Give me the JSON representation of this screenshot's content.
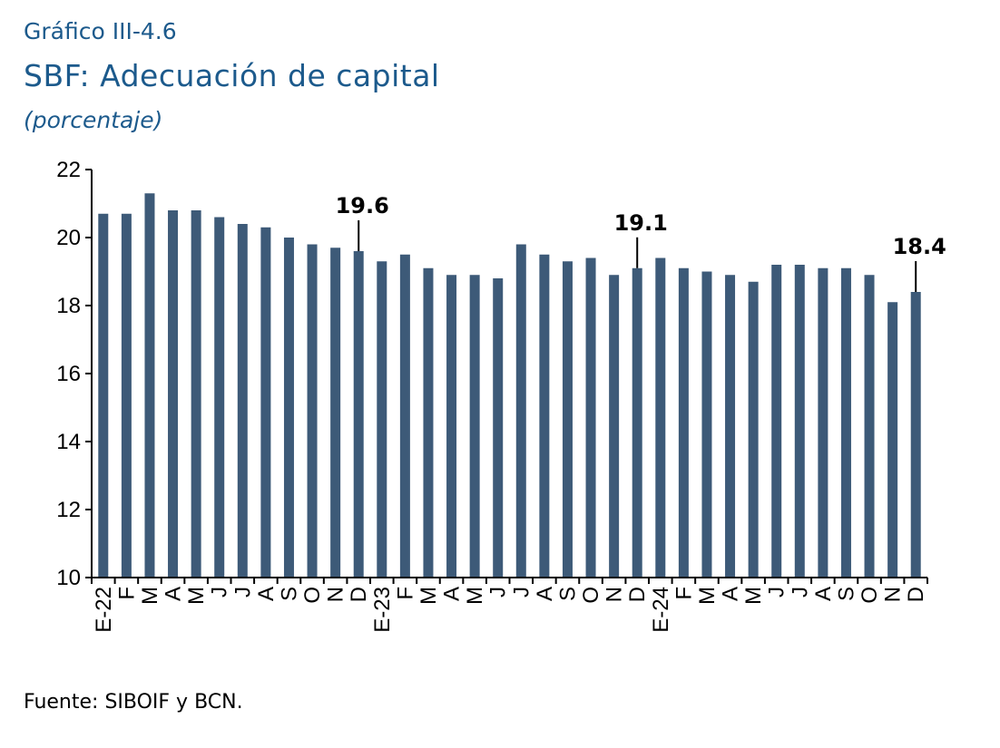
{
  "header": {
    "figure_number": "Gráfico III-4.6",
    "title": "SBF: Adecuación de capital",
    "units": "(porcentaje)"
  },
  "footer": {
    "source": "Fuente: SIBOIF y BCN."
  },
  "colors": {
    "bar": "#3d5a78",
    "text_title": "#1c5a8c",
    "axis": "#000000"
  },
  "chart_data": {
    "type": "bar",
    "title": "SBF: Adecuación de capital",
    "xlabel": "",
    "ylabel": "(porcentaje)",
    "ylim": [
      10,
      22
    ],
    "yticks": [
      10,
      12,
      14,
      16,
      18,
      20,
      22
    ],
    "grid": false,
    "categories": [
      "E-22",
      "F",
      "M",
      "A",
      "M",
      "J",
      "J",
      "A",
      "S",
      "O",
      "N",
      "D",
      "E-23",
      "F",
      "M",
      "A",
      "M",
      "J",
      "J",
      "A",
      "S",
      "O",
      "N",
      "D",
      "E-24",
      "F",
      "M",
      "A",
      "M",
      "J",
      "J",
      "A",
      "S",
      "O",
      "N",
      "D"
    ],
    "values": [
      20.7,
      20.7,
      21.3,
      20.8,
      20.8,
      20.6,
      20.4,
      20.3,
      20.0,
      19.8,
      19.7,
      19.6,
      19.3,
      19.5,
      19.1,
      18.9,
      18.9,
      18.8,
      19.8,
      19.5,
      19.3,
      19.4,
      18.9,
      19.1,
      19.4,
      19.1,
      19.0,
      18.9,
      18.7,
      19.2,
      19.2,
      19.1,
      19.1,
      18.9,
      18.1,
      18.4
    ],
    "annotations": [
      {
        "index": 11,
        "text": "19.6"
      },
      {
        "index": 23,
        "text": "19.1"
      },
      {
        "index": 35,
        "text": "18.4"
      }
    ]
  }
}
